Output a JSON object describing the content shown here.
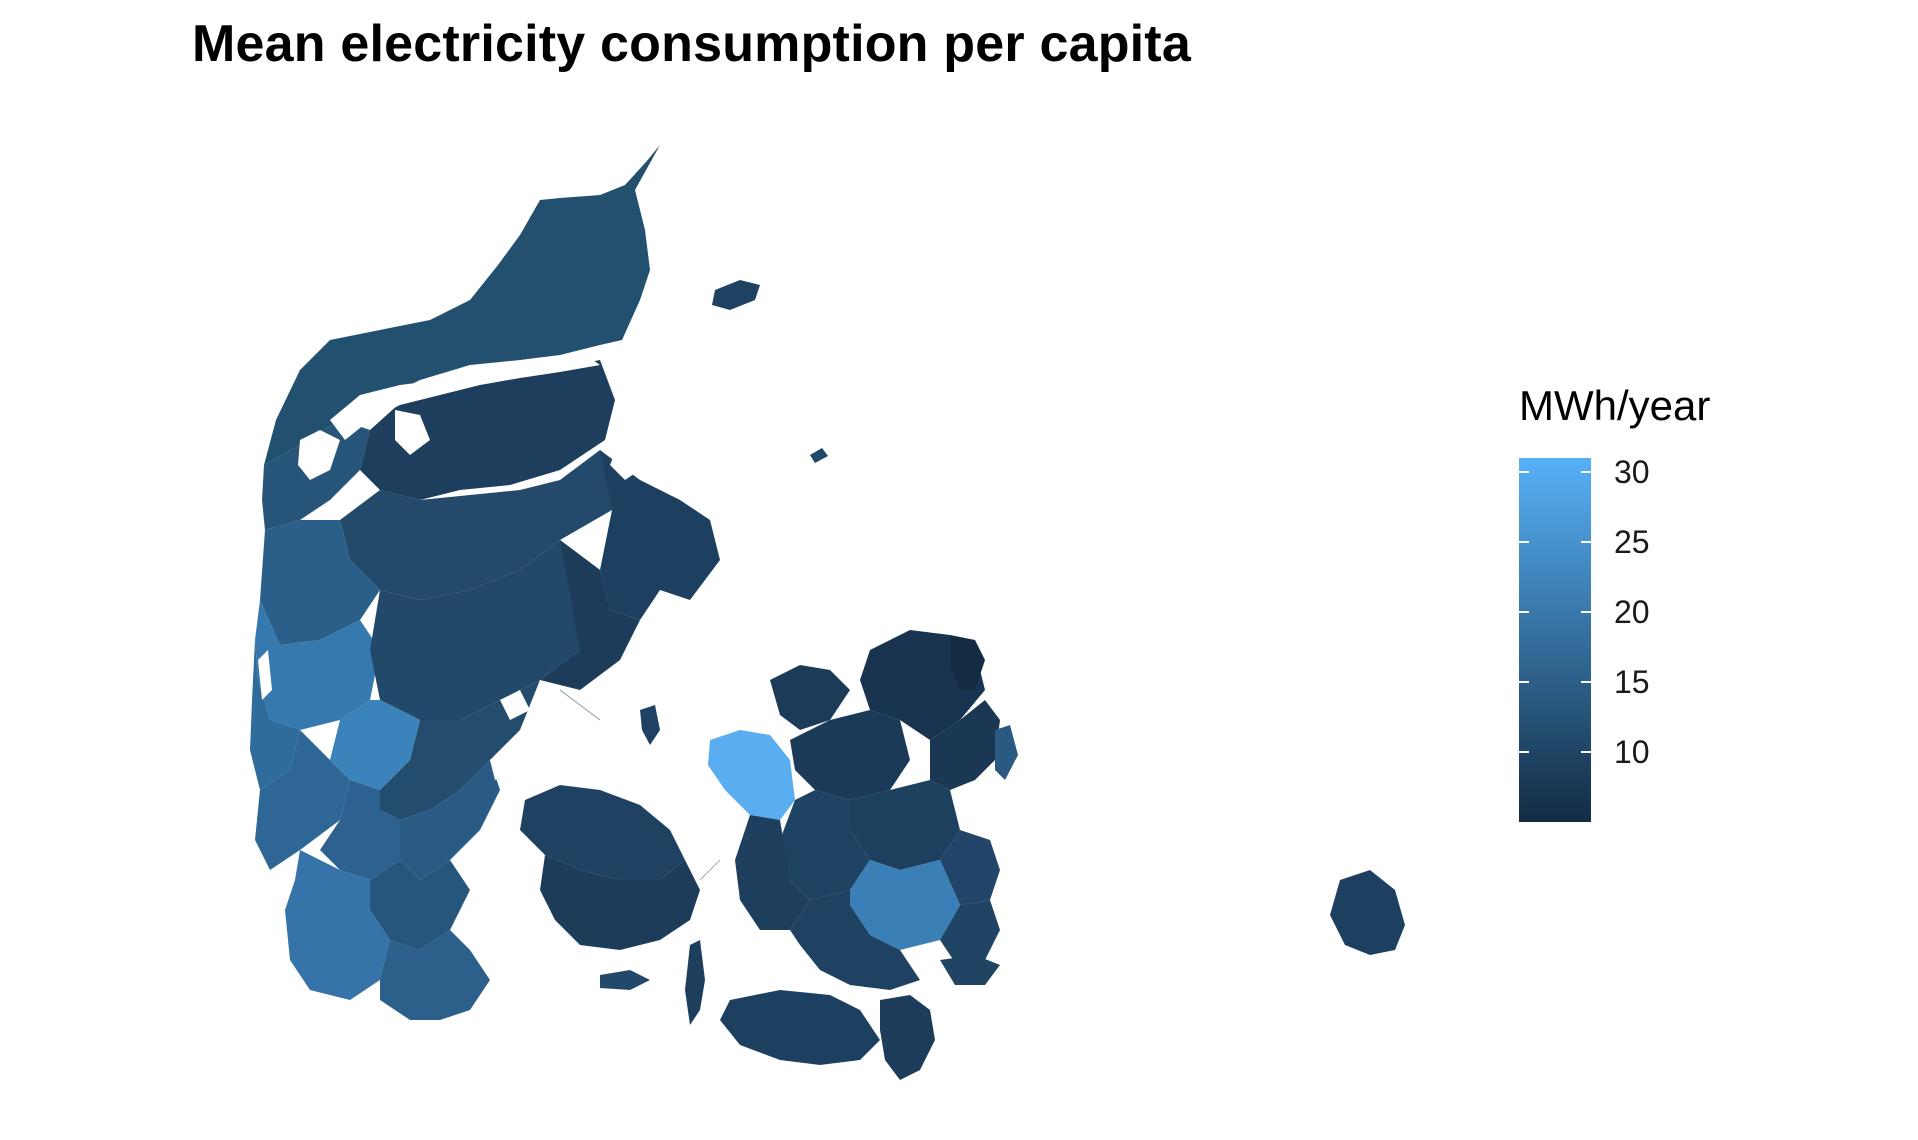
{
  "title": "Mean electricity consumption per capita",
  "legend": {
    "title": "MWh/year",
    "min": 5,
    "max": 31,
    "color_low": "#132B43",
    "color_high": "#56B1F7",
    "breaks": [
      {
        "value": 30,
        "label": "30"
      },
      {
        "value": 25,
        "label": "25"
      },
      {
        "value": 20,
        "label": "20"
      },
      {
        "value": 15,
        "label": "15"
      },
      {
        "value": 10,
        "label": "10"
      }
    ]
  },
  "map": {
    "country": "Denmark",
    "region_type": "municipality",
    "background_color": "#ffffff",
    "border_color": "#2a4d6b"
  }
}
